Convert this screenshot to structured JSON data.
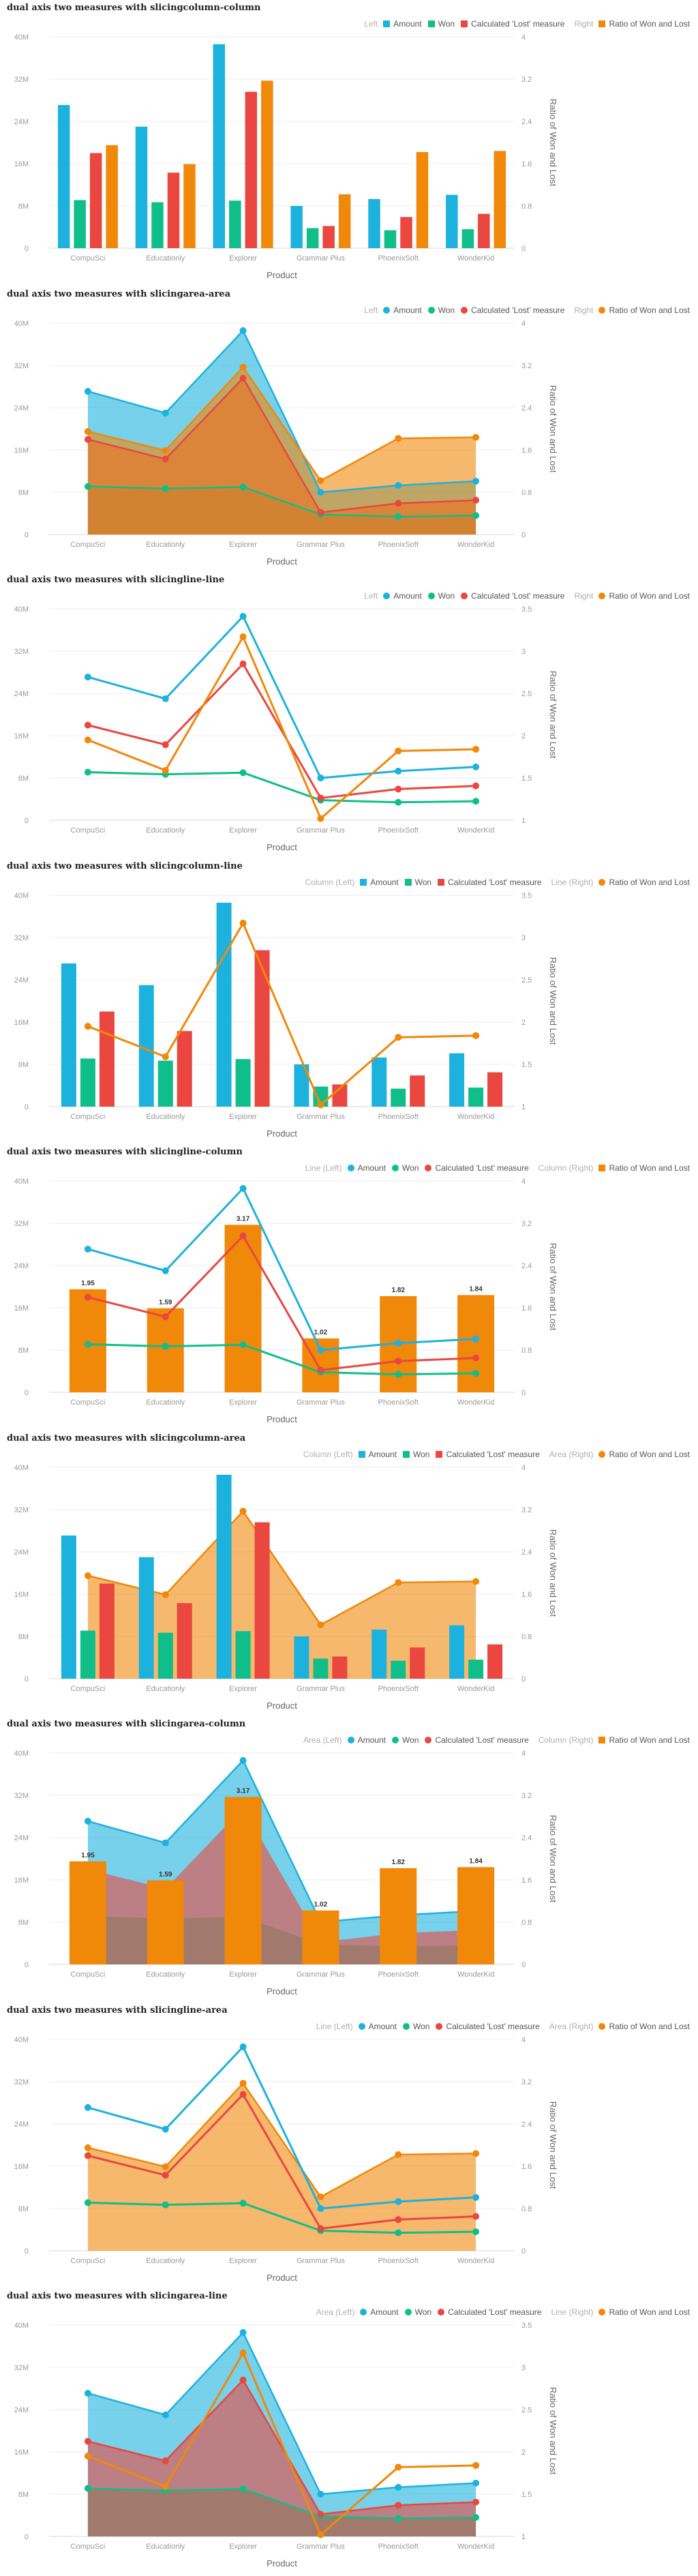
{
  "colors": {
    "amount": "#1db2dd",
    "won": "#10be8a",
    "lost": "#e9473f",
    "ratio": "#f0880a"
  },
  "chart_data": [
    {
      "title": "dual axis two measures with slicingcolumn-column",
      "type": "bar",
      "left_type": "column",
      "right_type": "column",
      "legend_left_label": "Left",
      "legend_right_label": "Right",
      "categories": [
        "CompuSci",
        "Educationly",
        "Explorer",
        "Grammar Plus",
        "PhoenixSoft",
        "WonderKid"
      ],
      "left_series": [
        {
          "name": "Amount",
          "values": [
            27.1,
            23.0,
            38.6,
            8.0,
            9.3,
            10.1
          ]
        },
        {
          "name": "Won",
          "values": [
            9.1,
            8.7,
            9.0,
            3.8,
            3.4,
            3.6
          ]
        },
        {
          "name": "Calculated 'Lost' measure",
          "values": [
            18.0,
            14.3,
            29.6,
            4.2,
            5.9,
            6.5
          ]
        }
      ],
      "right_series": [
        {
          "name": "Ratio of Won and Lost",
          "values": [
            1.95,
            1.59,
            3.17,
            1.02,
            1.82,
            1.84
          ]
        }
      ],
      "left_ylim": [
        0,
        40
      ],
      "left_ticks": [
        "0",
        "8M",
        "16M",
        "24M",
        "32M",
        "40M"
      ],
      "right_ylim": [
        0,
        4
      ],
      "right_ticks": [
        "0",
        "0.8",
        "1.6",
        "2.4",
        "3.2",
        "4"
      ],
      "xlabel": "Product",
      "ylabel_right": "Ratio of Won and Lost",
      "data_labels": false
    },
    {
      "title": "dual axis two measures with slicingarea-area",
      "type": "area",
      "left_type": "area",
      "right_type": "area",
      "legend_left_label": "Left",
      "legend_right_label": "Right",
      "categories": [
        "CompuSci",
        "Educationly",
        "Explorer",
        "Grammar Plus",
        "PhoenixSoft",
        "WonderKid"
      ],
      "left_series": [
        {
          "name": "Amount",
          "values": [
            27.1,
            23.0,
            38.6,
            8.0,
            9.3,
            10.1
          ]
        },
        {
          "name": "Won",
          "values": [
            9.1,
            8.7,
            9.0,
            3.8,
            3.4,
            3.6
          ]
        },
        {
          "name": "Calculated 'Lost' measure",
          "values": [
            18.0,
            14.3,
            29.6,
            4.2,
            5.9,
            6.5
          ]
        }
      ],
      "right_series": [
        {
          "name": "Ratio of Won and Lost",
          "values": [
            1.95,
            1.59,
            3.17,
            1.02,
            1.82,
            1.84
          ]
        }
      ],
      "left_ylim": [
        0,
        40
      ],
      "left_ticks": [
        "0",
        "8M",
        "16M",
        "24M",
        "32M",
        "40M"
      ],
      "right_ylim": [
        0,
        4
      ],
      "right_ticks": [
        "0",
        "0.8",
        "1.6",
        "2.4",
        "3.2",
        "4"
      ],
      "xlabel": "Product",
      "ylabel_right": "Ratio of Won and Lost",
      "data_labels": false
    },
    {
      "title": "dual axis two measures with slicingline-line",
      "type": "line",
      "left_type": "line",
      "right_type": "line",
      "legend_left_label": "Left",
      "legend_right_label": "Right",
      "categories": [
        "CompuSci",
        "Educationly",
        "Explorer",
        "Grammar Plus",
        "PhoenixSoft",
        "WonderKid"
      ],
      "left_series": [
        {
          "name": "Amount",
          "values": [
            27.1,
            23.0,
            38.6,
            8.0,
            9.3,
            10.1
          ]
        },
        {
          "name": "Won",
          "values": [
            9.1,
            8.7,
            9.0,
            3.8,
            3.4,
            3.6
          ]
        },
        {
          "name": "Calculated 'Lost' measure",
          "values": [
            18.0,
            14.3,
            29.6,
            4.2,
            5.9,
            6.5
          ]
        }
      ],
      "right_series": [
        {
          "name": "Ratio of Won and Lost",
          "values": [
            1.95,
            1.59,
            3.17,
            1.02,
            1.82,
            1.84
          ]
        }
      ],
      "left_ylim": [
        0,
        40
      ],
      "left_ticks": [
        "0",
        "8M",
        "16M",
        "24M",
        "32M",
        "40M"
      ],
      "right_ylim": [
        1,
        3.5
      ],
      "right_ticks": [
        "1",
        "1.5",
        "2",
        "2.5",
        "3",
        "3.5"
      ],
      "xlabel": "Product",
      "ylabel_right": "Ratio of Won and Lost",
      "data_labels": false
    },
    {
      "title": "dual axis two measures with slicingcolumn-line",
      "type": "bar",
      "left_type": "column",
      "right_type": "line",
      "legend_left_label": "Column (Left)",
      "legend_right_label": "Line (Right)",
      "categories": [
        "CompuSci",
        "Educationly",
        "Explorer",
        "Grammar Plus",
        "PhoenixSoft",
        "WonderKid"
      ],
      "left_series": [
        {
          "name": "Amount",
          "values": [
            27.1,
            23.0,
            38.6,
            8.0,
            9.3,
            10.1
          ]
        },
        {
          "name": "Won",
          "values": [
            9.1,
            8.7,
            9.0,
            3.8,
            3.4,
            3.6
          ]
        },
        {
          "name": "Calculated 'Lost' measure",
          "values": [
            18.0,
            14.3,
            29.6,
            4.2,
            5.9,
            6.5
          ]
        }
      ],
      "right_series": [
        {
          "name": "Ratio of Won and Lost",
          "values": [
            1.95,
            1.59,
            3.17,
            1.02,
            1.82,
            1.84
          ]
        }
      ],
      "left_ylim": [
        0,
        40
      ],
      "left_ticks": [
        "0",
        "8M",
        "16M",
        "24M",
        "32M",
        "40M"
      ],
      "right_ylim": [
        1,
        3.5
      ],
      "right_ticks": [
        "1",
        "1.5",
        "2",
        "2.5",
        "3",
        "3.5"
      ],
      "xlabel": "Product",
      "ylabel_right": "Ratio of Won and Lost",
      "data_labels": false
    },
    {
      "title": "dual axis two measures with slicingline-column",
      "type": "bar",
      "left_type": "line",
      "right_type": "column",
      "legend_left_label": "Line (Left)",
      "legend_right_label": "Column (Right)",
      "categories": [
        "CompuSci",
        "Educationly",
        "Explorer",
        "Grammar Plus",
        "PhoenixSoft",
        "WonderKid"
      ],
      "left_series": [
        {
          "name": "Amount",
          "values": [
            27.1,
            23.0,
            38.6,
            8.0,
            9.3,
            10.1
          ]
        },
        {
          "name": "Won",
          "values": [
            9.1,
            8.7,
            9.0,
            3.8,
            3.4,
            3.6
          ]
        },
        {
          "name": "Calculated 'Lost' measure",
          "values": [
            18.0,
            14.3,
            29.6,
            4.2,
            5.9,
            6.5
          ]
        }
      ],
      "right_series": [
        {
          "name": "Ratio of Won and Lost",
          "values": [
            1.95,
            1.59,
            3.17,
            1.02,
            1.82,
            1.84
          ]
        }
      ],
      "left_ylim": [
        0,
        40
      ],
      "left_ticks": [
        "0",
        "8M",
        "16M",
        "24M",
        "32M",
        "40M"
      ],
      "right_ylim": [
        0,
        4
      ],
      "right_ticks": [
        "0",
        "0.8",
        "1.6",
        "2.4",
        "3.2",
        "4"
      ],
      "xlabel": "Product",
      "ylabel_right": "Ratio of Won and Lost",
      "data_labels": true,
      "data_label_text": [
        "1.95",
        "1.59",
        "3.17",
        "1.02",
        "1.82",
        "1.84"
      ]
    },
    {
      "title": "dual axis two measures with slicingcolumn-area",
      "type": "bar",
      "left_type": "column",
      "right_type": "area",
      "legend_left_label": "Column (Left)",
      "legend_right_label": "Area (Right)",
      "categories": [
        "CompuSci",
        "Educationly",
        "Explorer",
        "Grammar Plus",
        "PhoenixSoft",
        "WonderKid"
      ],
      "left_series": [
        {
          "name": "Amount",
          "values": [
            27.1,
            23.0,
            38.6,
            8.0,
            9.3,
            10.1
          ]
        },
        {
          "name": "Won",
          "values": [
            9.1,
            8.7,
            9.0,
            3.8,
            3.4,
            3.6
          ]
        },
        {
          "name": "Calculated 'Lost' measure",
          "values": [
            18.0,
            14.3,
            29.6,
            4.2,
            5.9,
            6.5
          ]
        }
      ],
      "right_series": [
        {
          "name": "Ratio of Won and Lost",
          "values": [
            1.95,
            1.59,
            3.17,
            1.02,
            1.82,
            1.84
          ]
        }
      ],
      "left_ylim": [
        0,
        40
      ],
      "left_ticks": [
        "0",
        "8M",
        "16M",
        "24M",
        "32M",
        "40M"
      ],
      "right_ylim": [
        0,
        4
      ],
      "right_ticks": [
        "0",
        "0.8",
        "1.6",
        "2.4",
        "3.2",
        "4"
      ],
      "xlabel": "Product",
      "ylabel_right": "Ratio of Won and Lost",
      "data_labels": false
    },
    {
      "title": "dual axis two measures with slicingarea-column",
      "type": "area",
      "left_type": "area",
      "right_type": "column",
      "legend_left_label": "Area (Left)",
      "legend_right_label": "Column (Right)",
      "categories": [
        "CompuSci",
        "Educationly",
        "Explorer",
        "Grammar Plus",
        "PhoenixSoft",
        "WonderKid"
      ],
      "left_series": [
        {
          "name": "Amount",
          "values": [
            27.1,
            23.0,
            38.6,
            8.0,
            9.3,
            10.1
          ]
        },
        {
          "name": "Won",
          "values": [
            9.1,
            8.7,
            9.0,
            3.8,
            3.4,
            3.6
          ]
        },
        {
          "name": "Calculated 'Lost' measure",
          "values": [
            18.0,
            14.3,
            29.6,
            4.2,
            5.9,
            6.5
          ]
        }
      ],
      "right_series": [
        {
          "name": "Ratio of Won and Lost",
          "values": [
            1.95,
            1.59,
            3.17,
            1.02,
            1.82,
            1.84
          ]
        }
      ],
      "left_ylim": [
        0,
        40
      ],
      "left_ticks": [
        "0",
        "8M",
        "16M",
        "24M",
        "32M",
        "40M"
      ],
      "right_ylim": [
        0,
        4
      ],
      "right_ticks": [
        "0",
        "0.8",
        "1.6",
        "2.4",
        "3.2",
        "4"
      ],
      "xlabel": "Product",
      "ylabel_right": "Ratio of Won and Lost",
      "data_labels": true,
      "data_label_text": [
        "1.95",
        "1.59",
        "3.17",
        "1.02",
        "1.82",
        "1.84"
      ]
    },
    {
      "title": "dual axis two measures with slicingline-area",
      "type": "line",
      "left_type": "line",
      "right_type": "area",
      "legend_left_label": "Line (Left)",
      "legend_right_label": "Area (Right)",
      "categories": [
        "CompuSci",
        "Educationly",
        "Explorer",
        "Grammar Plus",
        "PhoenixSoft",
        "WonderKid"
      ],
      "left_series": [
        {
          "name": "Amount",
          "values": [
            27.1,
            23.0,
            38.6,
            8.0,
            9.3,
            10.1
          ]
        },
        {
          "name": "Won",
          "values": [
            9.1,
            8.7,
            9.0,
            3.8,
            3.4,
            3.6
          ]
        },
        {
          "name": "Calculated 'Lost' measure",
          "values": [
            18.0,
            14.3,
            29.6,
            4.2,
            5.9,
            6.5
          ]
        }
      ],
      "right_series": [
        {
          "name": "Ratio of Won and Lost",
          "values": [
            1.95,
            1.59,
            3.17,
            1.02,
            1.82,
            1.84
          ]
        }
      ],
      "left_ylim": [
        0,
        40
      ],
      "left_ticks": [
        "0",
        "8M",
        "16M",
        "24M",
        "32M",
        "40M"
      ],
      "right_ylim": [
        0,
        4
      ],
      "right_ticks": [
        "0",
        "0.8",
        "1.6",
        "2.4",
        "3.2",
        "4"
      ],
      "xlabel": "Product",
      "ylabel_right": "Ratio of Won and Lost",
      "data_labels": false
    },
    {
      "title": "dual axis two measures with slicingarea-line",
      "type": "area",
      "left_type": "area",
      "right_type": "line",
      "legend_left_label": "Area (Left)",
      "legend_right_label": "Line (Right)",
      "categories": [
        "CompuSci",
        "Educationly",
        "Explorer",
        "Grammar Plus",
        "PhoenixSoft",
        "WonderKid"
      ],
      "left_series": [
        {
          "name": "Amount",
          "values": [
            27.1,
            23.0,
            38.6,
            8.0,
            9.3,
            10.1
          ]
        },
        {
          "name": "Won",
          "values": [
            9.1,
            8.7,
            9.0,
            3.8,
            3.4,
            3.6
          ]
        },
        {
          "name": "Calculated 'Lost' measure",
          "values": [
            18.0,
            14.3,
            29.6,
            4.2,
            5.9,
            6.5
          ]
        }
      ],
      "right_series": [
        {
          "name": "Ratio of Won and Lost",
          "values": [
            1.95,
            1.59,
            3.17,
            1.02,
            1.82,
            1.84
          ]
        }
      ],
      "left_ylim": [
        0,
        40
      ],
      "left_ticks": [
        "0",
        "8M",
        "16M",
        "24M",
        "32M",
        "40M"
      ],
      "right_ylim": [
        1,
        3.5
      ],
      "right_ticks": [
        "1",
        "1.5",
        "2",
        "2.5",
        "3",
        "3.5"
      ],
      "xlabel": "Product",
      "ylabel_right": "Ratio of Won and Lost",
      "data_labels": false
    }
  ]
}
